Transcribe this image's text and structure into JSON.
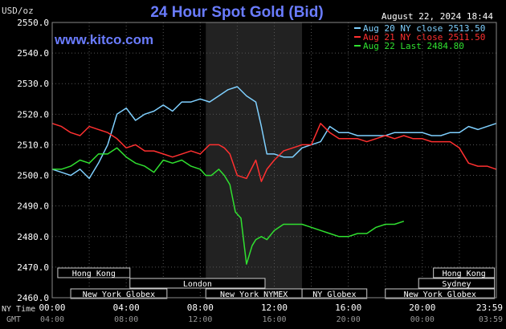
{
  "header": {
    "units": "USD/oz",
    "title": "24 Hour Spot Gold (Bid)",
    "timestamp": "August 22, 2024 18:44",
    "site": "www.kitco.com"
  },
  "legend": [
    {
      "label": "Aug 20 NY close 2513.50",
      "color": "#7fd0ff"
    },
    {
      "label": "Aug 21 NY close 2511.50",
      "color": "#ff3030"
    },
    {
      "label": "Aug 22 Last 2484.80",
      "color": "#30e030"
    }
  ],
  "axis": {
    "y_ticks": [
      "2550.0",
      "2540.0",
      "2530.0",
      "2520.0",
      "2510.0",
      "2500.0",
      "2490.0",
      "2480.0",
      "2470.0",
      "2460.0"
    ],
    "x_ticks_ny": [
      "00:00",
      "04:00",
      "08:00",
      "12:00",
      "16:00",
      "20:00",
      "23:59"
    ],
    "x_ticks_gmt": [
      "04:00",
      "08:00",
      "12:00",
      "16:00",
      "20:00",
      "00:00",
      "03:59"
    ],
    "row_label_ny": "NY Time",
    "row_label_gmt": "GMT"
  },
  "markets": [
    {
      "label": "Hong Kong",
      "start": 0.3,
      "end": 4.2,
      "row": 0
    },
    {
      "label": "Hong Kong",
      "start": 20.6,
      "end": 23.9,
      "row": 0
    },
    {
      "label": "London",
      "start": 4.2,
      "end": 11.5,
      "row": 1
    },
    {
      "label": "Sydney",
      "start": 19.8,
      "end": 23.9,
      "row": 1
    },
    {
      "label": "New York Globex",
      "start": 1.0,
      "end": 6.2,
      "row": 2
    },
    {
      "label": "New York NYMEX",
      "start": 8.3,
      "end": 13.5,
      "row": 2
    },
    {
      "label": "NY Globex",
      "start": 13.5,
      "end": 17.0,
      "row": 2
    },
    {
      "label": "New York Globex",
      "start": 18.0,
      "end": 23.9,
      "row": 2
    }
  ],
  "chart_data": {
    "type": "line",
    "xlim": [
      0,
      24
    ],
    "ylim": [
      2460,
      2550
    ],
    "y_ticks": [
      2460,
      2470,
      2480,
      2490,
      2500,
      2510,
      2520,
      2530,
      2540,
      2550
    ],
    "shaded_region": [
      8.3,
      13.5
    ],
    "series": [
      {
        "name": "Aug 20 NY close 2513.50",
        "color": "#7fd0ff",
        "x": [
          0,
          0.5,
          1.0,
          1.5,
          2.0,
          2.5,
          3.0,
          3.5,
          4.0,
          4.5,
          5.0,
          5.5,
          6.0,
          6.5,
          7.0,
          7.5,
          8.0,
          8.5,
          9.0,
          9.5,
          10.0,
          10.5,
          11.0,
          11.3,
          11.6,
          12.0,
          12.5,
          13.0,
          13.5,
          14.0,
          14.5,
          15.0,
          15.5,
          16.0,
          16.5,
          17.0,
          17.5,
          18.0,
          18.5,
          19.0,
          19.5,
          20.0,
          20.5,
          21.0,
          21.5,
          22.0,
          22.5,
          23.0,
          23.5,
          23.99
        ],
        "values": [
          2502,
          2501,
          2500,
          2502,
          2499,
          2504,
          2510,
          2520,
          2522,
          2518,
          2520,
          2521,
          2523,
          2521,
          2524,
          2524,
          2525,
          2524,
          2526,
          2528,
          2529,
          2526,
          2524,
          2516,
          2507,
          2507,
          2506,
          2506,
          2509,
          2510,
          2511,
          2516,
          2514,
          2514,
          2513,
          2513,
          2513,
          2513,
          2514,
          2514,
          2514,
          2514,
          2513,
          2513,
          2514,
          2514,
          2516,
          2515,
          2516,
          2517
        ]
      },
      {
        "name": "Aug 21 NY close 2511.50",
        "color": "#ff3030",
        "x": [
          0,
          0.5,
          1.0,
          1.5,
          2.0,
          2.5,
          3.0,
          3.5,
          4.0,
          4.5,
          5.0,
          5.5,
          6.0,
          6.5,
          7.0,
          7.5,
          8.0,
          8.5,
          9.0,
          9.3,
          9.6,
          10.0,
          10.5,
          11.0,
          11.3,
          11.6,
          12.0,
          12.5,
          13.0,
          13.5,
          14.0,
          14.5,
          15.0,
          15.5,
          16.0,
          16.5,
          17.0,
          17.5,
          18.0,
          18.5,
          19.0,
          19.5,
          20.0,
          20.5,
          21.0,
          21.5,
          22.0,
          22.5,
          23.0,
          23.5,
          23.99
        ],
        "values": [
          2517,
          2516,
          2514,
          2513,
          2516,
          2515,
          2514,
          2512,
          2509,
          2510,
          2508,
          2508,
          2507,
          2506,
          2507,
          2508,
          2507,
          2510,
          2510,
          2509,
          2507,
          2500,
          2499,
          2505,
          2498,
          2502,
          2505,
          2508,
          2509,
          2510,
          2510,
          2517,
          2514,
          2512,
          2512,
          2512,
          2511,
          2512,
          2513,
          2512,
          2513,
          2512,
          2512,
          2511,
          2511,
          2511,
          2509,
          2504,
          2503,
          2503,
          2502
        ]
      },
      {
        "name": "Aug 22 Last 2484.80",
        "color": "#30e030",
        "x": [
          0,
          0.5,
          1.0,
          1.5,
          2.0,
          2.5,
          3.0,
          3.5,
          4.0,
          4.5,
          5.0,
          5.5,
          6.0,
          6.5,
          7.0,
          7.5,
          8.0,
          8.3,
          8.6,
          9.0,
          9.3,
          9.6,
          9.9,
          10.2,
          10.5,
          10.8,
          11.0,
          11.3,
          11.6,
          12.0,
          12.5,
          13.0,
          13.5,
          14.0,
          14.5,
          15.0,
          15.5,
          16.0,
          16.5,
          17.0,
          17.5,
          18.0,
          18.5,
          19.0
        ],
        "values": [
          2502,
          2502,
          2503,
          2505,
          2504,
          2507,
          2507,
          2509,
          2506,
          2504,
          2503,
          2501,
          2505,
          2504,
          2505,
          2503,
          2502,
          2500,
          2500,
          2502,
          2500,
          2497,
          2488,
          2486,
          2471,
          2477,
          2479,
          2480,
          2479,
          2482,
          2484,
          2484,
          2484,
          2483,
          2482,
          2481,
          2480,
          2480,
          2481,
          2481,
          2483,
          2484,
          2484,
          2485
        ]
      }
    ]
  }
}
